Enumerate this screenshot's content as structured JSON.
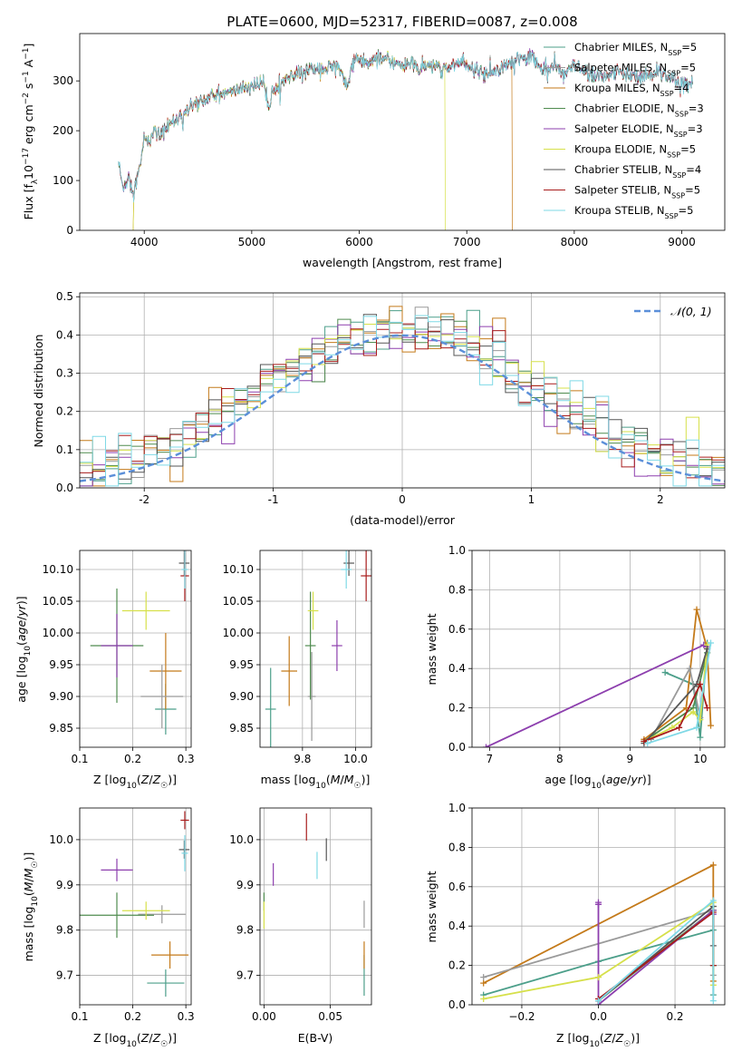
{
  "title": "PLATE=0600, MJD=52317, FIBERID=0087, z=0.008",
  "models": [
    {
      "name": "Chabrier MILES",
      "color": "#4c9f8a",
      "nssp": "5"
    },
    {
      "name": "Salpeter MILES",
      "color": "#9a9a9a",
      "nssp": "5"
    },
    {
      "name": "Kroupa MILES",
      "color": "#c47a1a",
      "nssp": "4"
    },
    {
      "name": "Chabrier ELODIE",
      "color": "#4f8b4f",
      "nssp": "3"
    },
    {
      "name": "Salpeter ELODIE",
      "color": "#8d3fae",
      "nssp": "3"
    },
    {
      "name": "Kroupa ELODIE",
      "color": "#d6e04a",
      "nssp": "5"
    },
    {
      "name": "Chabrier STELIB",
      "color": "#555555",
      "nssp": "4"
    },
    {
      "name": "Salpeter STELIB",
      "color": "#a81c1c",
      "nssp": "5"
    },
    {
      "name": "Kroupa STELIB",
      "color": "#7fd9e6",
      "nssp": "5"
    }
  ],
  "chart_data": [
    {
      "id": "spectrum",
      "type": "line",
      "xlabel": "wavelength [Angstrom, rest frame]",
      "ylabel": "Flux [f_λ 10^-17 erg cm^-2 s^-1 A^-1]",
      "xlim": [
        3400,
        9400
      ],
      "ylim": [
        0,
        395
      ],
      "xticks": [
        4000,
        5000,
        6000,
        7000,
        8000,
        9000
      ],
      "yticks": [
        0,
        100,
        200,
        300
      ],
      "legend_position": "top-right",
      "spectrum_anchor": {
        "x": [
          3760,
          3800,
          3860,
          3900,
          3940,
          3980,
          4000,
          4050,
          4100,
          4150,
          4200,
          4300,
          4400,
          4500,
          4600,
          4700,
          4800,
          4900,
          5000,
          5100,
          5170,
          5200,
          5300,
          5400,
          5500,
          5600,
          5700,
          5800,
          5890,
          5950,
          6000,
          6100,
          6200,
          6300,
          6400,
          6500,
          6563,
          6600,
          6700,
          6800,
          6900,
          7000,
          7100,
          7200,
          7300,
          7400,
          7500,
          7600,
          7700,
          7800,
          7900,
          8000,
          8200,
          8400,
          8600,
          8800,
          9000,
          9100
        ],
        "y": [
          140,
          85,
          110,
          75,
          110,
          150,
          190,
          175,
          200,
          190,
          205,
          225,
          240,
          255,
          265,
          275,
          275,
          285,
          290,
          295,
          240,
          290,
          300,
          310,
          320,
          325,
          325,
          330,
          295,
          340,
          340,
          335,
          345,
          340,
          330,
          335,
          320,
          330,
          330,
          320,
          335,
          330,
          320,
          315,
          325,
          335,
          345,
          350,
          320,
          330,
          310,
          330,
          305,
          320,
          305,
          320,
          290,
          300
        ]
      },
      "model_drops": [
        {
          "model": "Kroupa ELODIE",
          "x_start": 3900,
          "x_end": 6800
        },
        {
          "model": "Kroupa MILES",
          "x_start": 3900,
          "x_end": 7420
        }
      ]
    },
    {
      "id": "residuals",
      "type": "histogram",
      "xlabel": "(data-model)/error",
      "ylabel": "Normed distribution",
      "xlim": [
        -2.5,
        2.5
      ],
      "ylim": [
        0,
        0.51
      ],
      "xticks": [
        -2,
        -1,
        0,
        1,
        2
      ],
      "yticks": [
        0.0,
        0.1,
        0.2,
        0.3,
        0.4,
        0.5
      ],
      "reference_curve": "N(0,1)",
      "legend_label": "𝒩(0, 1)",
      "legend_position": "top-right",
      "bin_width": 0.1
    },
    {
      "id": "age_vs_Z",
      "type": "scatter",
      "xlabel": "Z [log10(Z/Z☉)]",
      "ylabel": "age  [log10(age/yr)]",
      "xlim": [
        0.1,
        0.31
      ],
      "ylim": [
        9.82,
        10.13
      ],
      "xticks": [
        0.1,
        0.2,
        0.3
      ],
      "yticks": [
        9.85,
        9.9,
        9.95,
        10.0,
        10.05,
        10.1
      ],
      "points": [
        {
          "model": "Chabrier MILES",
          "x": 0.262,
          "y": 9.88,
          "xerr": 0.02,
          "yerr": 0.04
        },
        {
          "model": "Kroupa MILES",
          "x": 0.262,
          "y": 9.94,
          "xerr": 0.03,
          "yerr": 0.06
        },
        {
          "model": "Salpeter MILES",
          "x": 0.255,
          "y": 9.9,
          "xerr": 0.04,
          "yerr": 0.05
        },
        {
          "model": "Chabrier ELODIE",
          "x": 0.17,
          "y": 9.98,
          "xerr": 0.05,
          "yerr": 0.09
        },
        {
          "model": "Salpeter ELODIE",
          "x": 0.17,
          "y": 9.98,
          "xerr": 0.03,
          "yerr": 0.05
        },
        {
          "model": "Kroupa ELODIE",
          "x": 0.225,
          "y": 10.035,
          "xerr": 0.045,
          "yerr": 0.03
        },
        {
          "model": "Chabrier STELIB",
          "x": 0.297,
          "y": 10.11,
          "xerr": 0.01,
          "yerr": 0.02
        },
        {
          "model": "Salpeter STELIB",
          "x": 0.298,
          "y": 10.09,
          "xerr": 0.008,
          "yerr": 0.04
        },
        {
          "model": "Kroupa STELIB",
          "x": 0.298,
          "y": 10.1,
          "xerr": 0.006,
          "yerr": 0.03
        }
      ]
    },
    {
      "id": "age_vs_mass",
      "type": "scatter",
      "xlabel": "mass [log10(M/M☉)]",
      "ylabel": "",
      "xlim": [
        9.64,
        10.06
      ],
      "ylim": [
        9.82,
        10.13
      ],
      "xticks": [
        9.8,
        10.0
      ],
      "yticks": [
        9.85,
        9.9,
        9.95,
        10.0,
        10.05,
        10.1
      ],
      "points": [
        {
          "model": "Chabrier MILES",
          "x": 9.68,
          "y": 9.88,
          "xerr": 0.02,
          "yerr": 0.065
        },
        {
          "model": "Kroupa MILES",
          "x": 9.75,
          "y": 9.94,
          "xerr": 0.03,
          "yerr": 0.055
        },
        {
          "model": "Salpeter MILES",
          "x": 9.835,
          "y": 9.9,
          "xerr": 0.015,
          "yerr": 0.07
        },
        {
          "model": "Chabrier ELODIE",
          "x": 9.83,
          "y": 9.98,
          "xerr": 0.02,
          "yerr": 0.085
        },
        {
          "model": "Salpeter ELODIE",
          "x": 9.93,
          "y": 9.98,
          "xerr": 0.02,
          "yerr": 0.04
        },
        {
          "model": "Kroupa ELODIE",
          "x": 9.84,
          "y": 10.035,
          "xerr": 0.02,
          "yerr": 0.03
        },
        {
          "model": "Chabrier STELIB",
          "x": 9.975,
          "y": 10.11,
          "xerr": 0.02,
          "yerr": 0.02
        },
        {
          "model": "Salpeter STELIB",
          "x": 10.04,
          "y": 10.09,
          "xerr": 0.02,
          "yerr": 0.04
        },
        {
          "model": "Kroupa STELIB",
          "x": 9.965,
          "y": 10.1,
          "xerr": 0.02,
          "yerr": 0.03
        }
      ]
    },
    {
      "id": "weight_vs_age",
      "type": "line",
      "xlabel": "age  [log10(age/yr)]",
      "ylabel": "mass weight",
      "xlim": [
        6.75,
        10.35
      ],
      "ylim": [
        0,
        1
      ],
      "xticks": [
        7,
        8,
        9,
        10
      ],
      "yticks": [
        0.0,
        0.2,
        0.4,
        0.6,
        0.8,
        1.0
      ],
      "series": [
        {
          "model": "Chabrier MILES",
          "x": [
            9.5,
            9.9,
            10.0,
            10.1
          ],
          "y": [
            0.38,
            0.32,
            0.05,
            0.53
          ]
        },
        {
          "model": "Kroupa MILES",
          "x": [
            9.2,
            9.8,
            9.95,
            10.1,
            10.15
          ],
          "y": [
            0.04,
            0.2,
            0.7,
            0.5,
            0.11
          ]
        },
        {
          "model": "Salpeter MILES",
          "x": [
            9.3,
            9.85,
            10.0,
            10.1
          ],
          "y": [
            0.04,
            0.4,
            0.15,
            0.48
          ]
        },
        {
          "model": "Chabrier ELODIE",
          "x": [
            9.2,
            9.9,
            10.1
          ],
          "y": [
            0.03,
            0.2,
            0.48
          ]
        },
        {
          "model": "Salpeter ELODIE",
          "x": [
            6.95,
            10.05,
            10.1
          ],
          "y": [
            0.0,
            0.52,
            0.51
          ]
        },
        {
          "model": "Kroupa ELODIE",
          "x": [
            9.2,
            9.6,
            9.9,
            10.0,
            10.1
          ],
          "y": [
            0.03,
            0.1,
            0.18,
            0.14,
            0.52
          ]
        },
        {
          "model": "Chabrier STELIB",
          "x": [
            9.2,
            9.95,
            10.1
          ],
          "y": [
            0.02,
            0.32,
            0.5
          ]
        },
        {
          "model": "Salpeter STELIB",
          "x": [
            9.2,
            9.7,
            10.0,
            10.1
          ],
          "y": [
            0.03,
            0.1,
            0.32,
            0.2
          ]
        },
        {
          "model": "Kroupa STELIB",
          "x": [
            9.25,
            9.95,
            10.15
          ],
          "y": [
            0.02,
            0.1,
            0.53
          ]
        }
      ]
    },
    {
      "id": "mass_vs_Z",
      "type": "scatter",
      "xlabel": "Z [log10(Z/Z☉)]",
      "ylabel": "mass [log10(M/M☉)]",
      "xlim": [
        0.1,
        0.31
      ],
      "ylim": [
        9.635,
        10.07
      ],
      "xticks": [
        0.1,
        0.2,
        0.3
      ],
      "yticks": [
        9.7,
        9.8,
        9.9,
        10.0
      ],
      "points": [
        {
          "model": "Chabrier MILES",
          "x": 0.262,
          "y": 9.683,
          "xerr": 0.035,
          "yerr": 0.03
        },
        {
          "model": "Kroupa MILES",
          "x": 0.27,
          "y": 9.745,
          "xerr": 0.035,
          "yerr": 0.03
        },
        {
          "model": "Salpeter MILES",
          "x": 0.255,
          "y": 9.835,
          "xerr": 0.045,
          "yerr": 0.02
        },
        {
          "model": "Chabrier ELODIE",
          "x": 0.17,
          "y": 9.833,
          "xerr": 0.07,
          "yerr": 0.05
        },
        {
          "model": "Salpeter ELODIE",
          "x": 0.17,
          "y": 9.933,
          "xerr": 0.03,
          "yerr": 0.025
        },
        {
          "model": "Kroupa ELODIE",
          "x": 0.225,
          "y": 9.843,
          "xerr": 0.045,
          "yerr": 0.02
        },
        {
          "model": "Chabrier STELIB",
          "x": 0.297,
          "y": 9.978,
          "xerr": 0.01,
          "yerr": 0.02
        },
        {
          "model": "Salpeter STELIB",
          "x": 0.298,
          "y": 10.043,
          "xerr": 0.008,
          "yerr": 0.02
        },
        {
          "model": "Kroupa STELIB",
          "x": 0.298,
          "y": 9.97,
          "xerr": 0.006,
          "yerr": 0.04
        }
      ]
    },
    {
      "id": "mass_vs_EBV",
      "type": "scatter",
      "xlabel": "E(B-V)",
      "ylabel": "",
      "xlim": [
        -0.003,
        0.081
      ],
      "ylim": [
        9.635,
        10.07
      ],
      "xticks": [
        0.0,
        0.05
      ],
      "xticklabels": [
        "0.00",
        "0.05"
      ],
      "yticks": [
        9.7,
        9.8,
        9.9,
        10.0
      ],
      "points": [
        {
          "model": "Chabrier MILES",
          "x": 0.0755,
          "y": 9.7,
          "xerr": 0,
          "yerr": 0.045
        },
        {
          "model": "Kroupa MILES",
          "x": 0.0755,
          "y": 9.745,
          "xerr": 0,
          "yerr": 0.03
        },
        {
          "model": "Salpeter MILES",
          "x": 0.0755,
          "y": 9.835,
          "xerr": 0,
          "yerr": 0.03
        },
        {
          "model": "Chabrier ELODIE",
          "x": 0.0,
          "y": 9.863,
          "xerr": 0,
          "yerr": 0.02
        },
        {
          "model": "Salpeter ELODIE",
          "x": 0.007,
          "y": 9.923,
          "xerr": 0,
          "yerr": 0.025
        },
        {
          "model": "Kroupa ELODIE",
          "x": 0.0,
          "y": 9.833,
          "xerr": 0,
          "yerr": 0.03
        },
        {
          "model": "Chabrier STELIB",
          "x": 0.047,
          "y": 9.978,
          "xerr": 0,
          "yerr": 0.025
        },
        {
          "model": "Salpeter STELIB",
          "x": 0.032,
          "y": 10.028,
          "xerr": 0,
          "yerr": 0.03
        },
        {
          "model": "Kroupa STELIB",
          "x": 0.04,
          "y": 9.943,
          "xerr": 0,
          "yerr": 0.03
        }
      ]
    },
    {
      "id": "weight_vs_Z",
      "type": "line",
      "xlabel": "Z [log10(Z/Z☉)]",
      "ylabel": "mass weight",
      "xlim": [
        -0.33,
        0.33
      ],
      "ylim": [
        0,
        1
      ],
      "xticks": [
        -0.2,
        0.0,
        0.2
      ],
      "yticks": [
        0.0,
        0.2,
        0.4,
        0.6,
        0.8,
        1.0
      ],
      "series": [
        {
          "model": "Chabrier MILES",
          "x": [
            -0.3,
            0.0,
            0.3,
            0.3,
            0.3
          ],
          "y": [
            0.05,
            0.22,
            0.38,
            0.2,
            0.05
          ]
        },
        {
          "model": "Kroupa MILES",
          "x": [
            -0.3,
            0.3,
            0.3,
            0.3
          ],
          "y": [
            0.11,
            0.71,
            0.5,
            0.12
          ]
        },
        {
          "model": "Salpeter MILES",
          "x": [
            -0.3,
            0.3,
            0.3
          ],
          "y": [
            0.14,
            0.48,
            0.15
          ]
        },
        {
          "model": "Chabrier ELODIE",
          "x": [
            0.0,
            0.3,
            0.3
          ],
          "y": [
            0.02,
            0.48,
            0.2
          ]
        },
        {
          "model": "Salpeter ELODIE",
          "x": [
            0.0,
            0.0,
            0.0,
            0.3,
            0.3
          ],
          "y": [
            0.52,
            0.51,
            0.0,
            0.48,
            0.46
          ]
        },
        {
          "model": "Kroupa ELODIE",
          "x": [
            -0.3,
            0.0,
            0.3,
            0.3
          ],
          "y": [
            0.03,
            0.14,
            0.52,
            0.1
          ]
        },
        {
          "model": "Chabrier STELIB",
          "x": [
            0.0,
            0.3,
            0.3
          ],
          "y": [
            0.02,
            0.5,
            0.3
          ]
        },
        {
          "model": "Salpeter STELIB",
          "x": [
            0.0,
            0.3,
            0.3
          ],
          "y": [
            0.03,
            0.47,
            0.2
          ]
        },
        {
          "model": "Kroupa STELIB",
          "x": [
            0.0,
            0.3,
            0.3
          ],
          "y": [
            0.02,
            0.53,
            0.02
          ]
        }
      ]
    }
  ]
}
